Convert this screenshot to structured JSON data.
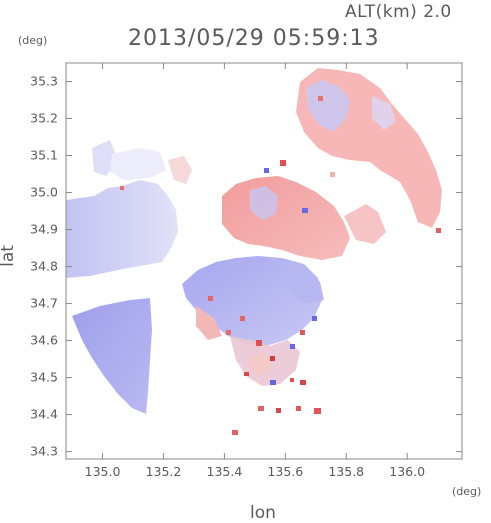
{
  "header": {
    "altitude_label": "ALT(km) 2.0",
    "datetime": "2013/05/29 05:59:13"
  },
  "axes": {
    "y_unit": "(deg)",
    "x_unit": "(deg)",
    "y_title": "lat",
    "x_title": "lon",
    "x_ticks": [
      "135.0",
      "135.2",
      "135.4",
      "135.6",
      "135.8",
      "136.0"
    ],
    "y_ticks": [
      "35.3",
      "35.2",
      "35.1",
      "35.0",
      "34.9",
      "34.8",
      "34.7",
      "34.6",
      "34.5",
      "34.4",
      "34.3"
    ],
    "x_range": [
      134.88,
      136.18
    ],
    "y_range": [
      34.28,
      35.35
    ]
  },
  "colors": {
    "positive": "#f4a6a6",
    "negative": "#a8a8f0",
    "frame": "#8a8a8a"
  }
}
